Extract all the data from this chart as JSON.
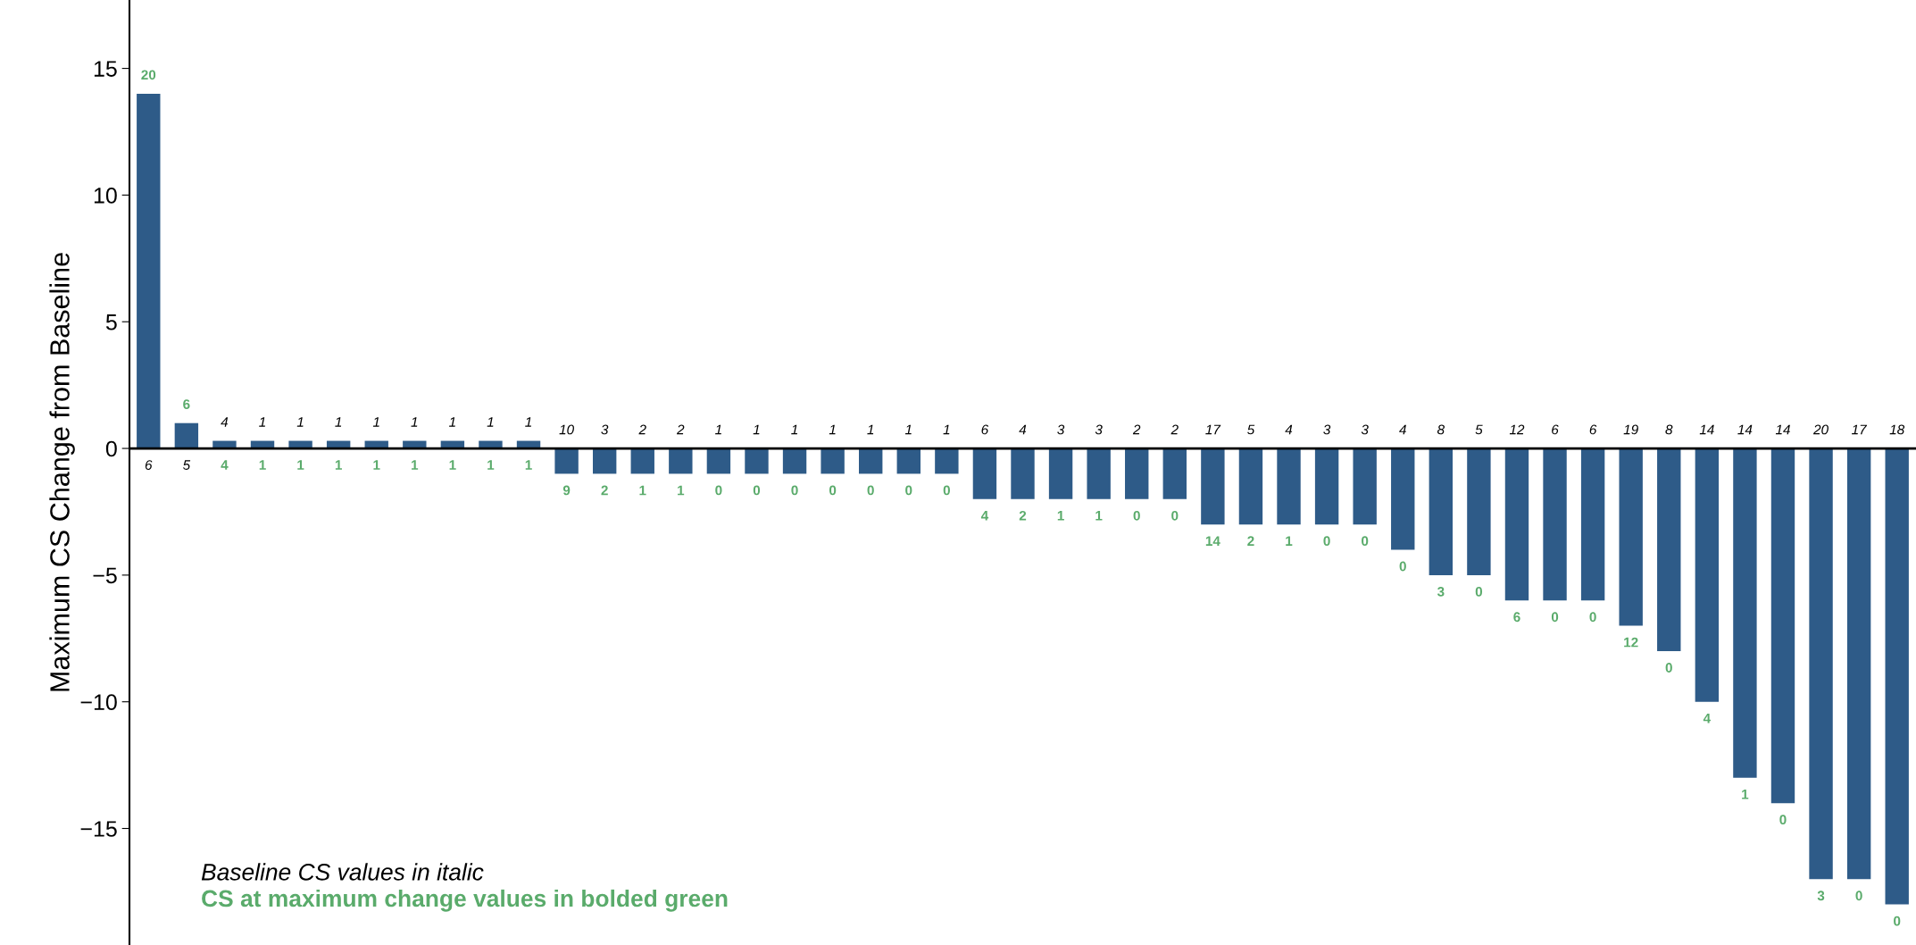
{
  "chart_data": {
    "type": "bar",
    "ylabel": "Maximum CS Change from Baseline",
    "categories": [
      null,
      null,
      null,
      null,
      null,
      null,
      null,
      null,
      null,
      null,
      null,
      null,
      null,
      null,
      null,
      null,
      null,
      null,
      null,
      null,
      null,
      null,
      null,
      null,
      null,
      null,
      null,
      null,
      null,
      null,
      null,
      null,
      null,
      null,
      null,
      null,
      null,
      null,
      null,
      null,
      null,
      null,
      null,
      null,
      null,
      null,
      null
    ],
    "series": [
      {
        "color": "#2e5b88",
        "values": [
          14,
          1,
          0.3,
          0.3,
          0.3,
          0.3,
          0.3,
          0.3,
          0.3,
          0.3,
          0.3,
          -1,
          -1,
          -1,
          -1,
          -1,
          -1,
          -1,
          -1,
          -1,
          -1,
          -1,
          -2,
          -2,
          -2,
          -2,
          -2,
          -2,
          -3,
          -3,
          -3,
          -3,
          -3,
          -4,
          -5,
          -5,
          -6,
          -6,
          -6,
          -7,
          -8,
          -10,
          -13,
          -14,
          -17,
          -17,
          -18
        ]
      }
    ],
    "annotations": [
      {
        "text": "6",
        "y": 0
      },
      {
        "text": "5",
        "y": 0
      },
      {
        "text": "4",
        "y": 0
      },
      {
        "text": "1",
        "y": 0
      },
      {
        "text": "1",
        "y": 0
      },
      {
        "text": "1",
        "y": 0
      },
      {
        "text": "1",
        "y": 0
      },
      {
        "text": "1",
        "y": 0
      },
      {
        "text": "1",
        "y": 0
      },
      {
        "text": "1",
        "y": 0
      },
      {
        "text": "1",
        "y": 0
      },
      {
        "text": "10",
        "y": 0
      },
      {
        "text": "3",
        "y": 0
      },
      {
        "text": "2",
        "y": 0
      },
      {
        "text": "2",
        "y": 0
      },
      {
        "text": "1",
        "y": 0
      },
      {
        "text": "1",
        "y": 0
      },
      {
        "text": "1",
        "y": 0
      },
      {
        "text": "1",
        "y": 0
      },
      {
        "text": "1",
        "y": 0
      },
      {
        "text": "1",
        "y": 0
      },
      {
        "text": "1",
        "y": 0
      },
      {
        "text": "6",
        "y": 0
      },
      {
        "text": "4",
        "y": 0
      },
      {
        "text": "3",
        "y": 0
      },
      {
        "text": "3",
        "y": 0
      },
      {
        "text": "2",
        "y": 0
      },
      {
        "text": "2",
        "y": 0
      },
      {
        "text": "17",
        "y": 0
      },
      {
        "text": "5",
        "y": 0
      },
      {
        "text": "4",
        "y": 0
      },
      {
        "text": "3",
        "y": 0
      },
      {
        "text": "3",
        "y": 0
      },
      {
        "text": "4",
        "y": 0
      },
      {
        "text": "8",
        "y": 0
      },
      {
        "text": "5",
        "y": 0
      },
      {
        "text": "12",
        "y": 0
      },
      {
        "text": "6",
        "y": 0
      },
      {
        "text": "6",
        "y": 0
      },
      {
        "text": "19",
        "y": 0
      },
      {
        "text": "8",
        "y": 0
      },
      {
        "text": "14",
        "y": 0
      },
      {
        "text": "14",
        "y": 0
      },
      {
        "text": "14",
        "y": 0
      },
      {
        "text": "20",
        "y": 0
      },
      {
        "text": "17",
        "y": 0
      },
      {
        "text": "18",
        "y": 0
      },
      {
        "text": "20",
        "y": 14
      },
      {
        "text": "6",
        "y": 1
      },
      {
        "text": "4",
        "y": 0
      },
      {
        "text": "1",
        "y": 0
      },
      {
        "text": "1",
        "y": 0
      },
      {
        "text": "1",
        "y": 0
      },
      {
        "text": "1",
        "y": 0
      },
      {
        "text": "1",
        "y": 0
      },
      {
        "text": "1",
        "y": 0
      },
      {
        "text": "1",
        "y": 0
      },
      {
        "text": "1",
        "y": 0
      },
      {
        "text": "9",
        "y": -1
      },
      {
        "text": "2",
        "y": -1
      },
      {
        "text": "1",
        "y": -1
      },
      {
        "text": "1",
        "y": -1
      },
      {
        "text": "0",
        "y": -1
      },
      {
        "text": "0",
        "y": -1
      },
      {
        "text": "0",
        "y": -1
      },
      {
        "text": "0",
        "y": -1
      },
      {
        "text": "0",
        "y": -1
      },
      {
        "text": "0",
        "y": -1
      },
      {
        "text": "0",
        "y": -1
      },
      {
        "text": "4",
        "y": -2
      },
      {
        "text": "2",
        "y": -2
      },
      {
        "text": "1",
        "y": -2
      },
      {
        "text": "1",
        "y": -2
      },
      {
        "text": "0",
        "y": -2
      },
      {
        "text": "0",
        "y": -2
      },
      {
        "text": "14",
        "y": -3
      },
      {
        "text": "2",
        "y": -3
      },
      {
        "text": "1",
        "y": -3
      },
      {
        "text": "0",
        "y": -3
      },
      {
        "text": "0",
        "y": -3
      },
      {
        "text": "0",
        "y": -4
      },
      {
        "text": "3",
        "y": -5
      },
      {
        "text": "0",
        "y": -5
      },
      {
        "text": "6",
        "y": -6
      },
      {
        "text": "0",
        "y": -6
      },
      {
        "text": "0",
        "y": -6
      },
      {
        "text": "12",
        "y": -7
      },
      {
        "text": "0",
        "y": -8
      },
      {
        "text": "4",
        "y": -10
      },
      {
        "text": "1",
        "y": -13
      },
      {
        "text": "0",
        "y": -14
      },
      {
        "text": "3",
        "y": -17
      },
      {
        "text": "0",
        "y": -17
      },
      {
        "text": "0",
        "y": -18
      },
      "Baseline CS values in italic",
      "CS at maximum change values in bolded green"
    ],
    "ylim": [
      -19.6,
      17.7
    ],
    "yticks": [
      -15,
      -10,
      -5,
      0,
      5,
      10,
      15
    ],
    "ref_lines": [
      {
        "axis": "y",
        "value": 0,
        "color": "#000000"
      }
    ],
    "grid": false,
    "legend": false,
    "tick_labels": "y"
  }
}
